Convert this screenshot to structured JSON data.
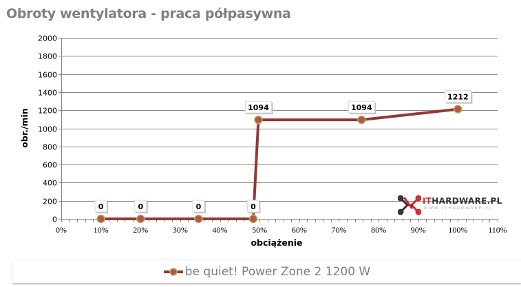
{
  "title": "Obroty wentylatora - praca półpasywna",
  "legend": {
    "label": "be quiet! Power Zone 2 1200 W",
    "line_color": "#953735",
    "marker_color": "#c0504d",
    "marker_edge": "#9bbb59"
  },
  "watermark": {
    "name_prefix": "IT",
    "name_rest": "HARDWARE.PL",
    "url": "WWW.ITHARDWARE.PL"
  },
  "chart_data": {
    "type": "line",
    "title": "Obroty wentylatora - praca półpasywna",
    "xlabel": "obciążenie",
    "ylabel": "obr./min",
    "xlim": [
      0,
      110
    ],
    "ylim": [
      0,
      2000
    ],
    "x_ticks": [
      "0%",
      "10%",
      "20%",
      "30%",
      "40%",
      "50%",
      "60%",
      "70%",
      "80%",
      "90%",
      "100%",
      "110%"
    ],
    "y_ticks": [
      "0",
      "200",
      "400",
      "600",
      "800",
      "1000",
      "1200",
      "1400",
      "1600",
      "1800",
      "2000"
    ],
    "grid": "horizontal",
    "legend_position": "bottom",
    "series": [
      {
        "name": "be quiet! Power Zone 2 1200 W",
        "x": [
          10,
          20,
          34.6,
          48.4,
          49.7,
          75.7,
          100
        ],
        "values": [
          0,
          0,
          0,
          0,
          1094,
          1094,
          1212
        ],
        "labels": [
          "0",
          "0",
          "0",
          "0",
          "1094",
          "1094",
          "1212"
        ]
      }
    ]
  }
}
